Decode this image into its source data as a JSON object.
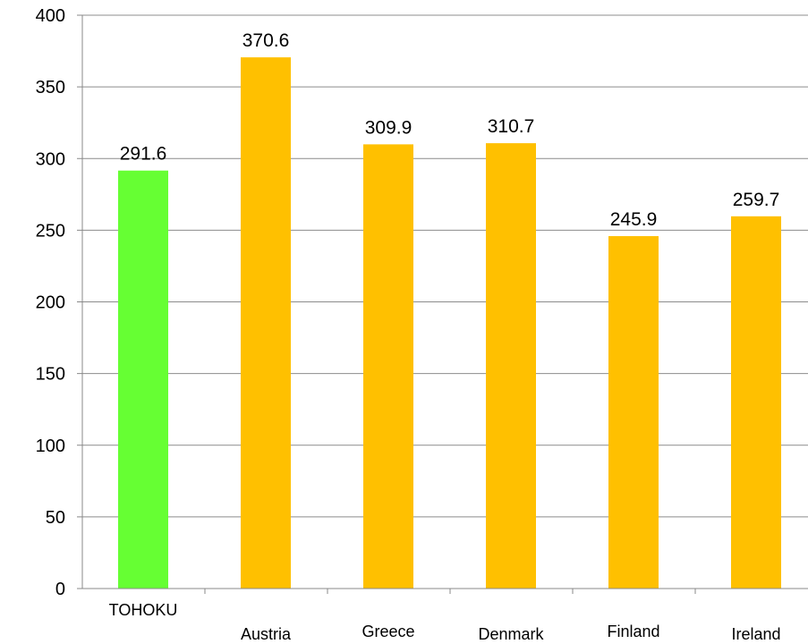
{
  "chart_data": {
    "type": "bar",
    "categories": [
      "TOHOKU",
      "Austria",
      "Greece",
      "Denmark",
      "Finland",
      "Ireland"
    ],
    "values": [
      291.6,
      370.6,
      309.9,
      310.7,
      245.9,
      259.7
    ],
    "data_labels": [
      "291.6",
      "370.6",
      "309.9",
      "310.7",
      "245.9",
      "259.7"
    ],
    "bar_colors": [
      "#66ff33",
      "#ffc000",
      "#ffc000",
      "#ffc000",
      "#ffc000",
      "#ffc000"
    ],
    "yticks": [
      "0",
      "50",
      "100",
      "150",
      "200",
      "250",
      "300",
      "350",
      "400"
    ],
    "ylim": [
      0,
      400
    ],
    "grid": true,
    "title": "",
    "xlabel": "",
    "ylabel": ""
  }
}
